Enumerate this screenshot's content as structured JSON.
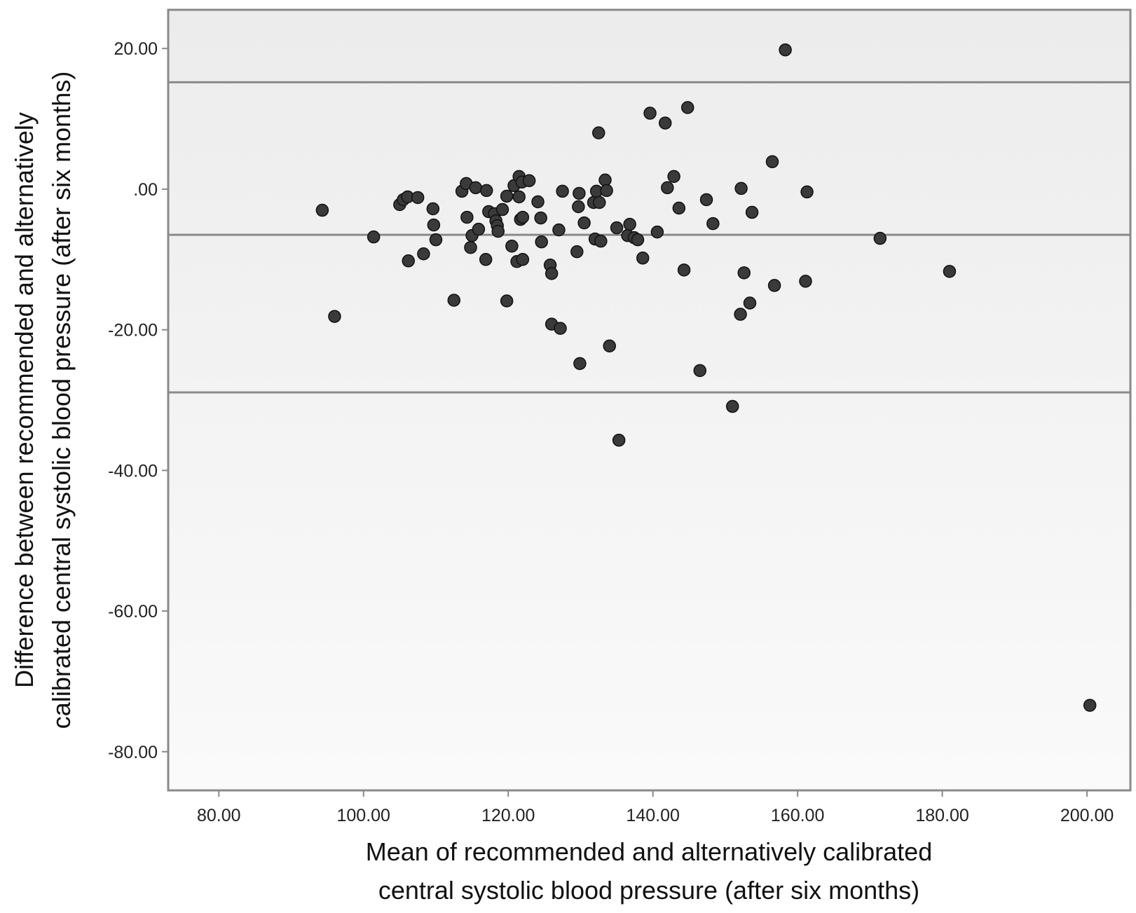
{
  "chart_data": {
    "type": "scatter",
    "xlabel_lines": [
      "Mean of recommended and alternatively calibrated",
      "central systolic blood pressure (after six months)"
    ],
    "ylabel_lines": [
      "Difference between recommended and alternatively",
      "calibrated central systolic blood pressure (after six months)"
    ],
    "xlim": [
      73,
      206
    ],
    "ylim": [
      -85.5,
      25.5
    ],
    "xticks": [
      80,
      100,
      120,
      140,
      160,
      180,
      200
    ],
    "xtick_labels": [
      "80.00",
      "100.00",
      "120.00",
      "140.00",
      "160.00",
      "180.00",
      "200.00"
    ],
    "yticks": [
      20,
      0,
      -20,
      -40,
      -60,
      -80
    ],
    "ytick_labels": [
      "20.00",
      ".00",
      "-20.00",
      "-40.00",
      "-60.00",
      "-80.00"
    ],
    "reference_lines": [
      15.2,
      -6.5,
      -28.9
    ],
    "grid": false,
    "legend": "none",
    "colors": {
      "point": "#3a3a3a",
      "reference_line": "#8a8a8a",
      "frame": "#8a8a8a"
    },
    "points": [
      [
        94.3,
        -3.0
      ],
      [
        96.0,
        -18.1
      ],
      [
        101.4,
        -6.8
      ],
      [
        105.0,
        -2.2
      ],
      [
        105.5,
        -1.5
      ],
      [
        106.1,
        -1.1
      ],
      [
        106.2,
        -10.2
      ],
      [
        107.5,
        -1.2
      ],
      [
        108.3,
        -9.2
      ],
      [
        109.6,
        -2.8
      ],
      [
        109.7,
        -5.1
      ],
      [
        110.0,
        -7.2
      ],
      [
        112.5,
        -15.8
      ],
      [
        113.6,
        -0.3
      ],
      [
        114.2,
        0.8
      ],
      [
        114.3,
        -4.0
      ],
      [
        114.8,
        -8.3
      ],
      [
        115.0,
        -6.6
      ],
      [
        115.5,
        0.2
      ],
      [
        115.9,
        -5.7
      ],
      [
        116.9,
        -10.0
      ],
      [
        117.0,
        -0.2
      ],
      [
        117.3,
        -3.2
      ],
      [
        118.1,
        -3.5
      ],
      [
        118.3,
        -4.5
      ],
      [
        118.5,
        -5.2
      ],
      [
        118.6,
        -6.0
      ],
      [
        119.2,
        -2.9
      ],
      [
        119.8,
        -1.0
      ],
      [
        119.8,
        -15.9
      ],
      [
        120.5,
        -8.1
      ],
      [
        120.8,
        0.5
      ],
      [
        121.2,
        -10.3
      ],
      [
        121.5,
        1.8
      ],
      [
        121.5,
        -1.1
      ],
      [
        121.7,
        -4.3
      ],
      [
        121.9,
        1.0
      ],
      [
        122.0,
        -4.0
      ],
      [
        122.0,
        -10.0
      ],
      [
        122.9,
        1.2
      ],
      [
        124.1,
        -1.8
      ],
      [
        124.5,
        -4.1
      ],
      [
        124.6,
        -7.5
      ],
      [
        125.8,
        -10.8
      ],
      [
        126.0,
        -12.0
      ],
      [
        126.0,
        -19.2
      ],
      [
        127.0,
        -5.8
      ],
      [
        127.2,
        -19.8
      ],
      [
        127.5,
        -0.3
      ],
      [
        129.5,
        -8.9
      ],
      [
        129.7,
        -2.5
      ],
      [
        129.8,
        -0.6
      ],
      [
        129.9,
        -24.8
      ],
      [
        130.5,
        -4.8
      ],
      [
        131.8,
        -1.9
      ],
      [
        132.0,
        -7.1
      ],
      [
        132.2,
        -0.3
      ],
      [
        132.5,
        8.0
      ],
      [
        132.6,
        -1.9
      ],
      [
        132.8,
        -7.4
      ],
      [
        133.4,
        1.3
      ],
      [
        133.6,
        -0.2
      ],
      [
        134.0,
        -22.3
      ],
      [
        135.0,
        -5.5
      ],
      [
        135.3,
        -35.7
      ],
      [
        136.5,
        -6.6
      ],
      [
        136.8,
        -5.0
      ],
      [
        137.4,
        -6.9
      ],
      [
        137.9,
        -7.2
      ],
      [
        138.6,
        -9.8
      ],
      [
        139.6,
        10.8
      ],
      [
        140.6,
        -6.1
      ],
      [
        141.7,
        9.4
      ],
      [
        142.0,
        0.2
      ],
      [
        142.9,
        1.8
      ],
      [
        143.6,
        -2.7
      ],
      [
        144.3,
        -11.5
      ],
      [
        144.8,
        11.6
      ],
      [
        146.5,
        -25.8
      ],
      [
        147.4,
        -1.5
      ],
      [
        148.3,
        -4.9
      ],
      [
        151.0,
        -30.9
      ],
      [
        152.1,
        -17.8
      ],
      [
        152.2,
        0.1
      ],
      [
        152.6,
        -11.9
      ],
      [
        153.4,
        -16.2
      ],
      [
        153.7,
        -3.3
      ],
      [
        156.5,
        3.9
      ],
      [
        156.8,
        -13.7
      ],
      [
        158.3,
        19.8
      ],
      [
        161.1,
        -13.1
      ],
      [
        161.3,
        -0.4
      ],
      [
        171.4,
        -7.0
      ],
      [
        181.0,
        -11.7
      ],
      [
        200.4,
        -73.4
      ]
    ]
  }
}
